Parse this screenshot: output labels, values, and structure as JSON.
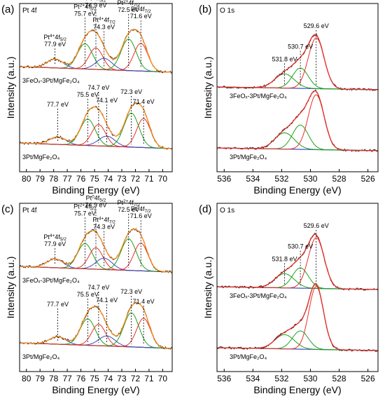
{
  "figure": {
    "panel_letters": [
      "(a)",
      "(b)",
      "(c)",
      "(d)"
    ]
  },
  "colors": {
    "raw": "#1a1a1a",
    "envelope": "#ff8c1a",
    "fit_alt": "#e8302a",
    "background": "#3b4cc0",
    "pt_metal": "#1ea01e",
    "pt_2plus": "#e8302a",
    "pt_4plus": "#3b4cc0",
    "o_lattice": "#e8302a",
    "o_other": "#1ea01e"
  },
  "chart_data": [
    {
      "panel": "(a)",
      "type": "line",
      "title": "Pt 4f",
      "xlabel": "Binding Energy (eV)",
      "ylabel": "Intensity (a.u.)",
      "xlim": [
        80.5,
        69.3
      ],
      "x_reversed": true,
      "xticks": [
        80,
        79,
        78,
        77,
        76,
        75,
        74,
        73,
        72,
        71,
        70
      ],
      "grid": false,
      "spectra": [
        {
          "name": "3FeOx-3Pt/MgFe2O4",
          "label": "3FeOₓ-3Pt/MgFe₂O₄",
          "peaks": [
            {
              "label": "Pt4+4f5/2",
              "label_sub": "5/2",
              "label_sup": "4+",
              "label_base": "Pt",
              "label_core": "4f",
              "energy_text": "77.9 eV",
              "center": 77.9,
              "height": 0.35,
              "fwhm": 1.4
            },
            {
              "label": "Pt2+4f5/2",
              "label_sub": "5/2",
              "label_sup": "2+",
              "label_base": "Pt",
              "label_core": "4f",
              "energy_text": "75.7 eV",
              "center": 75.7,
              "height": 1.0,
              "fwhm": 1.3
            },
            {
              "label": "Pt04f5/2",
              "label_sub": "5/2",
              "label_sup": "0",
              "label_base": "Pt",
              "label_core": "4f",
              "energy_text": "74.9 eV",
              "center": 74.9,
              "height": 0.85,
              "fwhm": 1.2
            },
            {
              "label": "Pt4+4f7/2",
              "label_sub": "7/2",
              "label_sup": "4+",
              "label_base": "Pt",
              "label_core": "4f",
              "energy_text": "74.3 eV",
              "center": 74.3,
              "height": 0.45,
              "fwhm": 1.4
            },
            {
              "label": "Pt2+4f7/2",
              "label_sub": "7/2",
              "label_sup": "2+",
              "label_base": "Pt",
              "label_core": "4f",
              "energy_text": "72.5 eV",
              "center": 72.5,
              "height": 1.25,
              "fwhm": 1.3
            },
            {
              "label": "Pt04f7/2",
              "label_sub": "7/2",
              "label_sup": "0",
              "label_base": "Pt",
              "label_core": "4f",
              "energy_text": "71.6 eV",
              "center": 71.6,
              "height": 1.1,
              "fwhm": 1.2
            }
          ]
        },
        {
          "name": "3Pt/MgFe2O4",
          "label": "3Pt/MgFe₂O₄",
          "peaks": [
            {
              "energy_text": "77.7 eV",
              "center": 77.7,
              "height": 0.3,
              "fwhm": 1.4
            },
            {
              "energy_text": "75.5 eV",
              "center": 75.5,
              "height": 1.05,
              "fwhm": 1.3
            },
            {
              "energy_text": "74.7 eV",
              "center": 74.7,
              "height": 0.85,
              "fwhm": 1.2
            },
            {
              "energy_text": "74.1 eV",
              "center": 74.1,
              "height": 0.4,
              "fwhm": 1.4
            },
            {
              "energy_text": "72.3 eV",
              "center": 72.3,
              "height": 1.35,
              "fwhm": 1.3
            },
            {
              "energy_text": "71.4 eV",
              "center": 71.4,
              "height": 1.15,
              "fwhm": 1.2
            }
          ]
        }
      ]
    },
    {
      "panel": "(b)",
      "type": "line",
      "title": "O 1s",
      "xlabel": "Binding Energy (eV)",
      "ylabel": "Intensity (a.u.)",
      "xlim": [
        536.5,
        525.3
      ],
      "x_reversed": true,
      "xticks": [
        536,
        534,
        532,
        530,
        528,
        526
      ],
      "grid": false,
      "spectra": [
        {
          "name": "3FeOx-3Pt/MgFe2O4",
          "label": "3FeOₓ-3Pt/MgFe₂O₄",
          "peaks": [
            {
              "energy_text": "531.8 eV",
              "center": 531.8,
              "height": 0.35,
              "fwhm": 1.6
            },
            {
              "energy_text": "530.7 eV",
              "center": 530.7,
              "height": 0.5,
              "fwhm": 1.3
            },
            {
              "energy_text": "529.6 eV",
              "center": 529.6,
              "height": 1.25,
              "fwhm": 1.3
            }
          ]
        },
        {
          "name": "3Pt/MgFe2O4",
          "label": "3Pt/MgFe₂O₄",
          "peaks": [
            {
              "center": 531.8,
              "height": 0.4,
              "fwhm": 1.6
            },
            {
              "center": 530.7,
              "height": 0.6,
              "fwhm": 1.3
            },
            {
              "center": 529.6,
              "height": 1.35,
              "fwhm": 1.3
            }
          ]
        }
      ]
    },
    {
      "panel": "(c)",
      "type": "line",
      "title": "Pt 4f",
      "xlabel": "Binding Energy (eV)",
      "ylabel": "Intensity (a.u.)",
      "xlim": [
        80.5,
        69.3
      ],
      "x_reversed": true,
      "xticks": [
        80,
        79,
        78,
        77,
        76,
        75,
        74,
        73,
        72,
        71,
        70
      ],
      "grid": false,
      "spectra": [
        {
          "name": "3FeOx-3Pt/MgFe2O4",
          "label": "3FeOₓ-3Pt/MgFe₂O₄",
          "peaks": [
            {
              "label": "Pt4+4f5/2",
              "label_sub": "5/2",
              "label_sup": "4+",
              "label_base": "Pt",
              "label_core": "4f",
              "energy_text": "77.9 eV",
              "center": 77.9,
              "height": 0.35,
              "fwhm": 1.4
            },
            {
              "label": "Pt2+4f5/2",
              "label_sub": "5/2",
              "label_sup": "2+",
              "label_base": "Pt",
              "label_core": "4f",
              "energy_text": "75.7 eV",
              "center": 75.7,
              "height": 1.0,
              "fwhm": 1.3
            },
            {
              "label": "Pt04f5/2",
              "label_sub": "5/2",
              "label_sup": "0",
              "label_base": "Pt",
              "label_core": "4f",
              "energy_text": "74.9 eV",
              "center": 74.9,
              "height": 0.85,
              "fwhm": 1.2
            },
            {
              "label": "Pt4+4f7/2",
              "label_sub": "7/2",
              "label_sup": "4+",
              "label_base": "Pt",
              "label_core": "4f",
              "energy_text": "74.3 eV",
              "center": 74.3,
              "height": 0.45,
              "fwhm": 1.4
            },
            {
              "label": "Pt2+4f7/2",
              "label_sub": "7/2",
              "label_sup": "2+",
              "label_base": "Pt",
              "label_core": "4f",
              "energy_text": "72.5 eV",
              "center": 72.5,
              "height": 1.25,
              "fwhm": 1.3
            },
            {
              "label": "Pt04f7/2",
              "label_sub": "7/2",
              "label_sup": "0",
              "label_base": "Pt",
              "label_core": "4f",
              "energy_text": "71.6 eV",
              "center": 71.6,
              "height": 1.1,
              "fwhm": 1.2
            }
          ]
        },
        {
          "name": "3Pt/MgFe2O4",
          "label": "3Pt/MgFe₂O₄",
          "peaks": [
            {
              "energy_text": "77.7 eV",
              "center": 77.7,
              "height": 0.3,
              "fwhm": 1.4
            },
            {
              "energy_text": "75.5 eV",
              "center": 75.5,
              "height": 1.05,
              "fwhm": 1.3
            },
            {
              "energy_text": "74.7 eV",
              "center": 74.7,
              "height": 0.85,
              "fwhm": 1.2
            },
            {
              "energy_text": "74.1 eV",
              "center": 74.1,
              "height": 0.4,
              "fwhm": 1.4
            },
            {
              "energy_text": "72.3 eV",
              "center": 72.3,
              "height": 1.35,
              "fwhm": 1.3
            },
            {
              "energy_text": "71.4 eV",
              "center": 71.4,
              "height": 1.15,
              "fwhm": 1.2
            }
          ]
        }
      ]
    },
    {
      "panel": "(d)",
      "type": "line",
      "title": "O 1s",
      "xlabel": "Binding Energy (eV)",
      "ylabel": "Intensity (a.u.)",
      "xlim": [
        536.5,
        525.3
      ],
      "x_reversed": true,
      "xticks": [
        536,
        534,
        532,
        530,
        528,
        526
      ],
      "grid": false,
      "spectra": [
        {
          "name": "3FeOx-3Pt/MgFe2O4",
          "label": "3FeOₓ-3Pt/MgFe₂O₄",
          "peaks": [
            {
              "energy_text": "531.8 eV",
              "center": 531.8,
              "height": 0.35,
              "fwhm": 1.6
            },
            {
              "energy_text": "530.7 eV",
              "center": 530.7,
              "height": 0.5,
              "fwhm": 1.3
            },
            {
              "energy_text": "529.6 eV",
              "center": 529.6,
              "height": 1.25,
              "fwhm": 1.3
            }
          ]
        },
        {
          "name": "3Pt/MgFe2O4",
          "label": "3Pt/MgFe₂O₄",
          "peaks": [
            {
              "center": 531.8,
              "height": 0.35,
              "fwhm": 1.6
            },
            {
              "center": 530.7,
              "height": 0.45,
              "fwhm": 1.3
            },
            {
              "center": 529.6,
              "height": 1.55,
              "fwhm": 1.2
            }
          ]
        }
      ]
    }
  ]
}
